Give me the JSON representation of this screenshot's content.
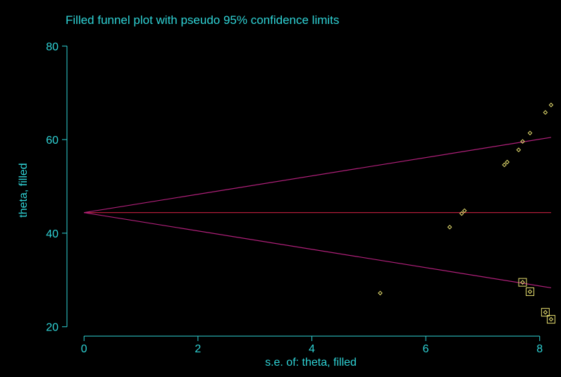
{
  "chart_data": {
    "type": "scatter",
    "title": "Filled funnel plot with pseudo 95% confidence limits",
    "xlabel": "s.e. of: theta, filled",
    "ylabel": "theta, filled",
    "xlim": [
      -0.3,
      8.3
    ],
    "ylim": [
      18.0,
      82.0
    ],
    "xticks": [
      0,
      2,
      4,
      6,
      8
    ],
    "yticks": [
      20,
      40,
      60,
      80
    ],
    "x_tick_labels": [
      "0",
      "2",
      "4",
      "6",
      "8"
    ],
    "y_tick_labels": [
      "20",
      "40",
      "60",
      "80"
    ],
    "grid": false,
    "legend": "none",
    "pooled_estimate": 44.4,
    "ci_multiplier": 1.96,
    "line_max_x": 8.2,
    "series": [
      {
        "marker": "diamond",
        "points": [
          {
            "x": 5.2,
            "y": 27.2
          },
          {
            "x": 6.42,
            "y": 41.3
          },
          {
            "x": 6.63,
            "y": 44.2
          },
          {
            "x": 6.68,
            "y": 44.8
          },
          {
            "x": 7.38,
            "y": 54.6
          },
          {
            "x": 7.43,
            "y": 55.2
          },
          {
            "x": 7.63,
            "y": 57.8
          },
          {
            "x": 7.7,
            "y": 59.6
          },
          {
            "x": 7.83,
            "y": 61.4
          },
          {
            "x": 8.1,
            "y": 65.8
          },
          {
            "x": 8.2,
            "y": 67.4
          }
        ]
      },
      {
        "marker": "square",
        "points": [
          {
            "x": 7.7,
            "y": 29.5
          },
          {
            "x": 7.83,
            "y": 27.5
          },
          {
            "x": 8.1,
            "y": 23.1
          },
          {
            "x": 8.2,
            "y": 21.6
          }
        ]
      }
    ],
    "colors": {
      "axis": "#2fd3d6",
      "points": "#e8e070",
      "ci_lines": "#b0207a",
      "estimate_line": "#c42040"
    }
  }
}
